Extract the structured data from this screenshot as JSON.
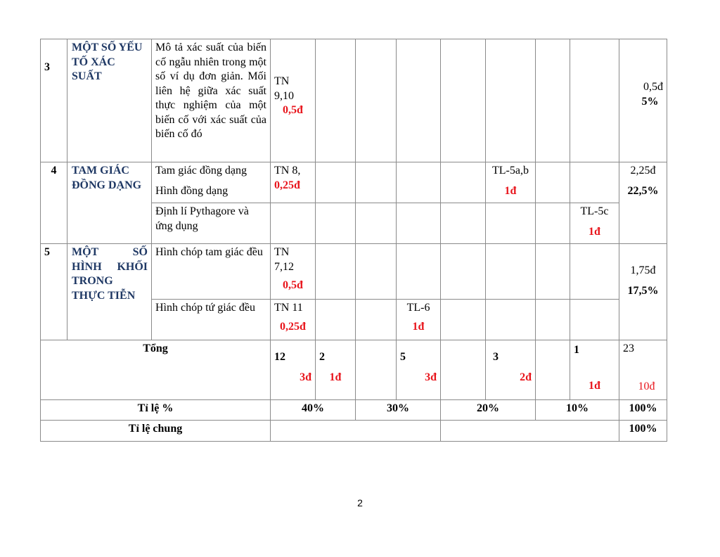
{
  "rows": {
    "r3": {
      "num": "3",
      "topic": "MỘT SỐ YẾU TỐ XÁC SUẤT",
      "content": "Mô tả xác suất của biến cố ngẫu nhiên trong một số ví dụ đơn giản. Mối liên hệ giữa xác suất thực nghiệm của một biến cố với xác suất của biến cố đó",
      "c1": "TN 9,10",
      "c1p": "0,5đ",
      "total": "0,5đ",
      "pct": "5%"
    },
    "r4": {
      "num": "4",
      "topic": "TAM GIÁC ĐỒNG DẠNG",
      "content_a1": "Tam giác đồng dạng",
      "content_a2": "Hình đồng dạng",
      "a_c1": "TN 8,",
      "a_c1p": "0,25đ",
      "a_c6": "TL-5a,b",
      "a_c6p": "1đ",
      "content_b": "Định lí Pythagore và ứng dụng",
      "b_c8": "TL-5c",
      "b_c8p": "1đ",
      "total": "2,25đ",
      "pct": "22,5%"
    },
    "r5": {
      "num": "5",
      "topic": "MỘT SỐ HÌNH KHỐI TRONG THỰC TIỄN",
      "content_a": "Hình chóp tam giác đều",
      "a_c1": "TN 7,12",
      "a_c1p": "0,5đ",
      "content_b": "Hình chóp tứ giác đều",
      "b_c1": "TN 11",
      "b_c1p": "0,25đ",
      "b_c4": "TL-6",
      "b_c4p": "1đ",
      "total": "1,75đ",
      "pct": "17,5%"
    }
  },
  "tong": {
    "label": "Tổng",
    "c1": "12",
    "c1p": "3đ",
    "c2": "2",
    "c2p": "1đ",
    "c4": "5",
    "c4p": "3đ",
    "c6": "3",
    "c6p": "2đ",
    "c8": "1",
    "c8p": "1đ",
    "total": "23",
    "totalp": "10đ"
  },
  "tile": {
    "label": "Tỉ lệ %",
    "v1": "40%",
    "v2": "30%",
    "v3": "20%",
    "v4": "10%",
    "total": "100%"
  },
  "tilechung": {
    "label": "Tỉ lệ chung",
    "total": "100%"
  },
  "page_number": "2"
}
